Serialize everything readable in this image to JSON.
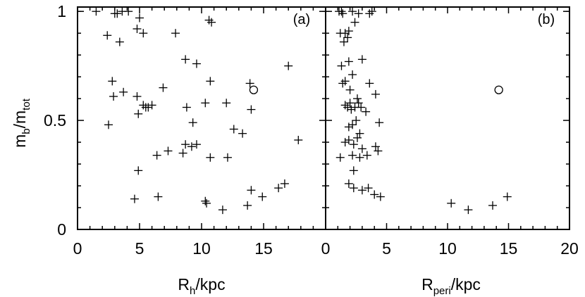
{
  "chart_data": [
    {
      "type": "scatter",
      "panel_label": "(a)",
      "xlabel": {
        "main": "R",
        "sub": "h",
        "rest": "/kpc"
      },
      "ylabel": {
        "main1": "m",
        "sub1": "b",
        "slash": "/",
        "main2": "m",
        "sub2": "tot"
      },
      "xlim": [
        0,
        20
      ],
      "ylim": [
        0,
        1.02
      ],
      "xticks": [
        0,
        5,
        10,
        15
      ],
      "xticklabels": [
        "0",
        "5",
        "10",
        "15"
      ],
      "yticks": [
        0,
        0.5,
        1
      ],
      "yticklabels": [
        "0",
        "0.5",
        "1"
      ],
      "series": [
        {
          "marker": "plus",
          "points": [
            [
              1.5,
              1.0
            ],
            [
              3.0,
              0.99
            ],
            [
              3.2,
              0.99
            ],
            [
              3.6,
              1.0
            ],
            [
              4.1,
              1.0
            ],
            [
              5.0,
              0.97
            ],
            [
              10.6,
              0.96
            ],
            [
              10.8,
              0.95
            ],
            [
              2.4,
              0.89
            ],
            [
              4.8,
              0.92
            ],
            [
              3.4,
              0.86
            ],
            [
              5.3,
              0.9
            ],
            [
              7.9,
              0.9
            ],
            [
              8.7,
              0.78
            ],
            [
              9.6,
              0.76
            ],
            [
              17.0,
              0.75
            ],
            [
              2.8,
              0.68
            ],
            [
              3.7,
              0.63
            ],
            [
              2.9,
              0.61
            ],
            [
              4.8,
              0.61
            ],
            [
              6.9,
              0.65
            ],
            [
              10.7,
              0.68
            ],
            [
              13.9,
              0.67
            ],
            [
              5.3,
              0.57
            ],
            [
              5.5,
              0.56
            ],
            [
              5.7,
              0.56
            ],
            [
              6.0,
              0.57
            ],
            [
              8.8,
              0.56
            ],
            [
              10.3,
              0.58
            ],
            [
              12.0,
              0.58
            ],
            [
              14.0,
              0.55
            ],
            [
              2.5,
              0.48
            ],
            [
              4.9,
              0.53
            ],
            [
              9.3,
              0.49
            ],
            [
              12.6,
              0.46
            ],
            [
              13.3,
              0.44
            ],
            [
              7.3,
              0.36
            ],
            [
              8.7,
              0.39
            ],
            [
              9.2,
              0.38
            ],
            [
              9.6,
              0.39
            ],
            [
              17.8,
              0.41
            ],
            [
              6.4,
              0.34
            ],
            [
              8.5,
              0.35
            ],
            [
              4.9,
              0.27
            ],
            [
              10.7,
              0.33
            ],
            [
              12.1,
              0.33
            ],
            [
              4.6,
              0.14
            ],
            [
              6.5,
              0.15
            ],
            [
              10.3,
              0.13
            ],
            [
              10.4,
              0.12
            ],
            [
              11.7,
              0.09
            ],
            [
              13.7,
              0.11
            ],
            [
              14.0,
              0.18
            ],
            [
              14.9,
              0.15
            ],
            [
              16.2,
              0.19
            ],
            [
              16.7,
              0.21
            ]
          ]
        },
        {
          "marker": "circle",
          "points": [
            [
              14.2,
              0.64
            ]
          ]
        }
      ]
    },
    {
      "type": "scatter",
      "panel_label": "(b)",
      "xlabel": {
        "main": "R",
        "sub": "peri",
        "rest": "/kpc"
      },
      "xlim": [
        0,
        20
      ],
      "ylim": [
        0,
        1.02
      ],
      "xticks": [
        0,
        5,
        10,
        15,
        20
      ],
      "xticklabels": [
        "0",
        "5",
        "10",
        "15",
        "20"
      ],
      "series": [
        {
          "marker": "plus",
          "points": [
            [
              1.1,
              1.0
            ],
            [
              1.3,
              1.0
            ],
            [
              1.4,
              0.99
            ],
            [
              2.2,
              1.0
            ],
            [
              2.7,
              0.99
            ],
            [
              3.6,
              0.99
            ],
            [
              3.8,
              1.0
            ],
            [
              1.2,
              0.9
            ],
            [
              1.6,
              0.9
            ],
            [
              1.9,
              0.91
            ],
            [
              1.5,
              0.86
            ],
            [
              1.8,
              0.88
            ],
            [
              2.4,
              0.95
            ],
            [
              1.3,
              0.75
            ],
            [
              1.9,
              0.77
            ],
            [
              3.0,
              0.78
            ],
            [
              2.2,
              0.71
            ],
            [
              1.4,
              0.67
            ],
            [
              1.6,
              0.68
            ],
            [
              2.0,
              0.64
            ],
            [
              2.6,
              0.6
            ],
            [
              3.6,
              0.67
            ],
            [
              4.1,
              0.62
            ],
            [
              1.6,
              0.57
            ],
            [
              1.8,
              0.56
            ],
            [
              2.0,
              0.58
            ],
            [
              2.1,
              0.55
            ],
            [
              2.4,
              0.56
            ],
            [
              2.7,
              0.58
            ],
            [
              2.9,
              0.56
            ],
            [
              3.3,
              0.54
            ],
            [
              1.9,
              0.47
            ],
            [
              2.2,
              0.48
            ],
            [
              2.5,
              0.5
            ],
            [
              2.8,
              0.44
            ],
            [
              4.4,
              0.49
            ],
            [
              1.6,
              0.4
            ],
            [
              1.9,
              0.41
            ],
            [
              2.3,
              0.39
            ],
            [
              2.6,
              0.42
            ],
            [
              4.1,
              0.38
            ],
            [
              4.3,
              0.36
            ],
            [
              3.0,
              0.37
            ],
            [
              1.2,
              0.33
            ],
            [
              2.2,
              0.34
            ],
            [
              2.8,
              0.33
            ],
            [
              3.4,
              0.34
            ],
            [
              2.3,
              0.27
            ],
            [
              1.9,
              0.21
            ],
            [
              2.3,
              0.19
            ],
            [
              3.0,
              0.18
            ],
            [
              3.5,
              0.19
            ],
            [
              4.0,
              0.16
            ],
            [
              4.5,
              0.15
            ],
            [
              10.3,
              0.12
            ],
            [
              11.7,
              0.09
            ],
            [
              13.7,
              0.11
            ],
            [
              14.9,
              0.15
            ]
          ]
        },
        {
          "marker": "circle",
          "points": [
            [
              14.2,
              0.64
            ]
          ]
        }
      ]
    }
  ]
}
